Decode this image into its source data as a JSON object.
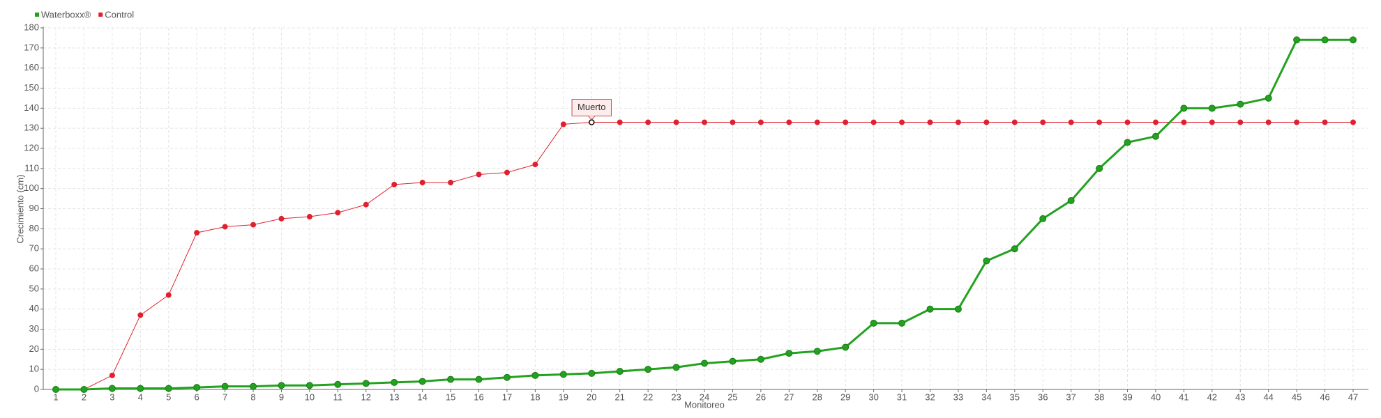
{
  "chart_data": {
    "type": "line",
    "y_label": "Crecimiento (cm)",
    "x_label": "Monitoreo",
    "categories": [
      "1",
      "2",
      "3",
      "4",
      "5",
      "6",
      "7",
      "8",
      "9",
      "10",
      "11",
      "12",
      "13",
      "14",
      "15",
      "16",
      "17",
      "18",
      "19",
      "20",
      "21",
      "22",
      "23",
      "24",
      "25",
      "26",
      "27",
      "28",
      "29",
      "30",
      "31",
      "32",
      "33",
      "34",
      "35",
      "36",
      "37",
      "38",
      "39",
      "40",
      "41",
      "42",
      "43",
      "44",
      "45",
      "46",
      "47"
    ],
    "series": [
      {
        "name": "Waterboxx®",
        "color": "#22a21e",
        "values": [
          0,
          0,
          0.5,
          0.5,
          0.5,
          1,
          1.5,
          1.5,
          2,
          2,
          2.5,
          3,
          3.5,
          4,
          5,
          5,
          6,
          7,
          7.5,
          8,
          9,
          10,
          11,
          13,
          14,
          15,
          18,
          19,
          21,
          33,
          33,
          40,
          40,
          64,
          70,
          85,
          94,
          110,
          123,
          126,
          140,
          140,
          142,
          145,
          174,
          174,
          174
        ]
      },
      {
        "name": "Control",
        "color": "#e0202e",
        "values": [
          0,
          0,
          7,
          37,
          47,
          78,
          81,
          82,
          85,
          86,
          88,
          92,
          102,
          103,
          103,
          107,
          108,
          112,
          132,
          133,
          133,
          133,
          133,
          133,
          133,
          133,
          133,
          133,
          133,
          133,
          133,
          133,
          133,
          133,
          133,
          133,
          133,
          133,
          133,
          133,
          133,
          133,
          133,
          133,
          133,
          133,
          133
        ]
      }
    ],
    "ylim": [
      0,
      180
    ],
    "yticks": [
      0,
      10,
      20,
      30,
      40,
      50,
      60,
      70,
      80,
      90,
      100,
      110,
      120,
      130,
      140,
      150,
      160,
      170,
      180
    ],
    "grid": true,
    "legend": "top-left",
    "annotations": [
      {
        "text": "Muerto",
        "series": "Control",
        "x": "20"
      }
    ]
  }
}
